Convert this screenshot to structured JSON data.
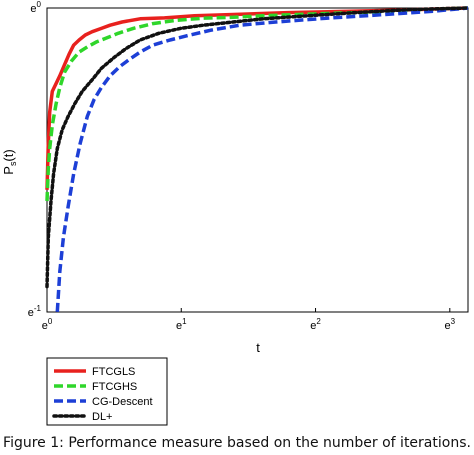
{
  "chart_data": {
    "type": "line",
    "xlabel": "t",
    "ylabel": "P_s(t)",
    "x_scale": "log-e",
    "y_scale": "log-e",
    "xlim": [
      1,
      23
    ],
    "ylim": [
      0.3679,
      1
    ],
    "x_ticks": [
      {
        "value": 1,
        "base": "e",
        "exp": "0"
      },
      {
        "value": 2.718,
        "base": "e",
        "exp": "1"
      },
      {
        "value": 7.389,
        "base": "e",
        "exp": "2"
      },
      {
        "value": 20.086,
        "base": "e",
        "exp": "3"
      }
    ],
    "y_ticks": [
      {
        "value": 0.3679,
        "base": "e",
        "exp": "-1"
      },
      {
        "value": 1,
        "base": "e",
        "exp": "0"
      }
    ],
    "grid": false,
    "legend_position": "below-left",
    "series": [
      {
        "name": "FTCGLS",
        "color": "#e8211e",
        "dash": "solid",
        "x": [
          1,
          1.01,
          1.02,
          1.04,
          1.07,
          1.1,
          1.14,
          1.18,
          1.22,
          1.27,
          1.33,
          1.4,
          1.5,
          1.6,
          1.75,
          2.0,
          2.4,
          3.0,
          4.0,
          6.0,
          10.0,
          16.0,
          23.0
        ],
        "y": [
          0.55,
          0.64,
          0.71,
          0.76,
          0.78,
          0.8,
          0.83,
          0.86,
          0.885,
          0.9,
          0.915,
          0.925,
          0.935,
          0.945,
          0.955,
          0.965,
          0.968,
          0.975,
          0.979,
          0.985,
          0.99,
          0.995,
          1.0
        ]
      },
      {
        "name": "FTCGHS",
        "color": "#2fd62a",
        "dash": "dashed",
        "x": [
          1,
          1.01,
          1.02,
          1.04,
          1.07,
          1.1,
          1.14,
          1.2,
          1.27,
          1.35,
          1.45,
          1.55,
          1.7,
          1.9,
          2.2,
          2.6,
          3.2,
          4.0,
          5.0,
          7.0,
          10.0,
          15.0,
          23.0
        ],
        "y": [
          0.53,
          0.59,
          0.63,
          0.68,
          0.73,
          0.77,
          0.81,
          0.84,
          0.865,
          0.88,
          0.895,
          0.905,
          0.92,
          0.935,
          0.95,
          0.96,
          0.967,
          0.97,
          0.975,
          0.98,
          0.985,
          0.992,
          1.0
        ]
      },
      {
        "name": "CG-Descent",
        "color": "#1d3fd6",
        "dash": "dashed",
        "x": [
          1.08,
          1.1,
          1.13,
          1.17,
          1.22,
          1.28,
          1.35,
          1.42,
          1.5,
          1.6,
          1.72,
          1.85,
          2.0,
          2.2,
          2.5,
          2.9,
          3.4,
          4.2,
          5.5,
          8.0,
          12.0,
          18.0,
          23.0
        ],
        "y": [
          0.368,
          0.42,
          0.47,
          0.52,
          0.58,
          0.64,
          0.7,
          0.74,
          0.77,
          0.8,
          0.825,
          0.845,
          0.865,
          0.885,
          0.9,
          0.915,
          0.93,
          0.945,
          0.955,
          0.967,
          0.978,
          0.99,
          1.0
        ]
      },
      {
        "name": "DL+",
        "color": "#111111",
        "dash": "dotted",
        "x": [
          1,
          1.01,
          1.03,
          1.05,
          1.08,
          1.12,
          1.17,
          1.23,
          1.3,
          1.4,
          1.5,
          1.65,
          1.8,
          2.0,
          2.3,
          2.7,
          3.2,
          4.0,
          5.0,
          7.0,
          10.0,
          15.0,
          23.0
        ],
        "y": [
          0.4,
          0.47,
          0.53,
          0.58,
          0.63,
          0.67,
          0.7,
          0.73,
          0.76,
          0.79,
          0.82,
          0.85,
          0.875,
          0.9,
          0.92,
          0.935,
          0.945,
          0.955,
          0.965,
          0.975,
          0.985,
          0.995,
          1.0
        ]
      }
    ]
  },
  "caption": "Figure 1: Performance measure based on the number of iterations."
}
